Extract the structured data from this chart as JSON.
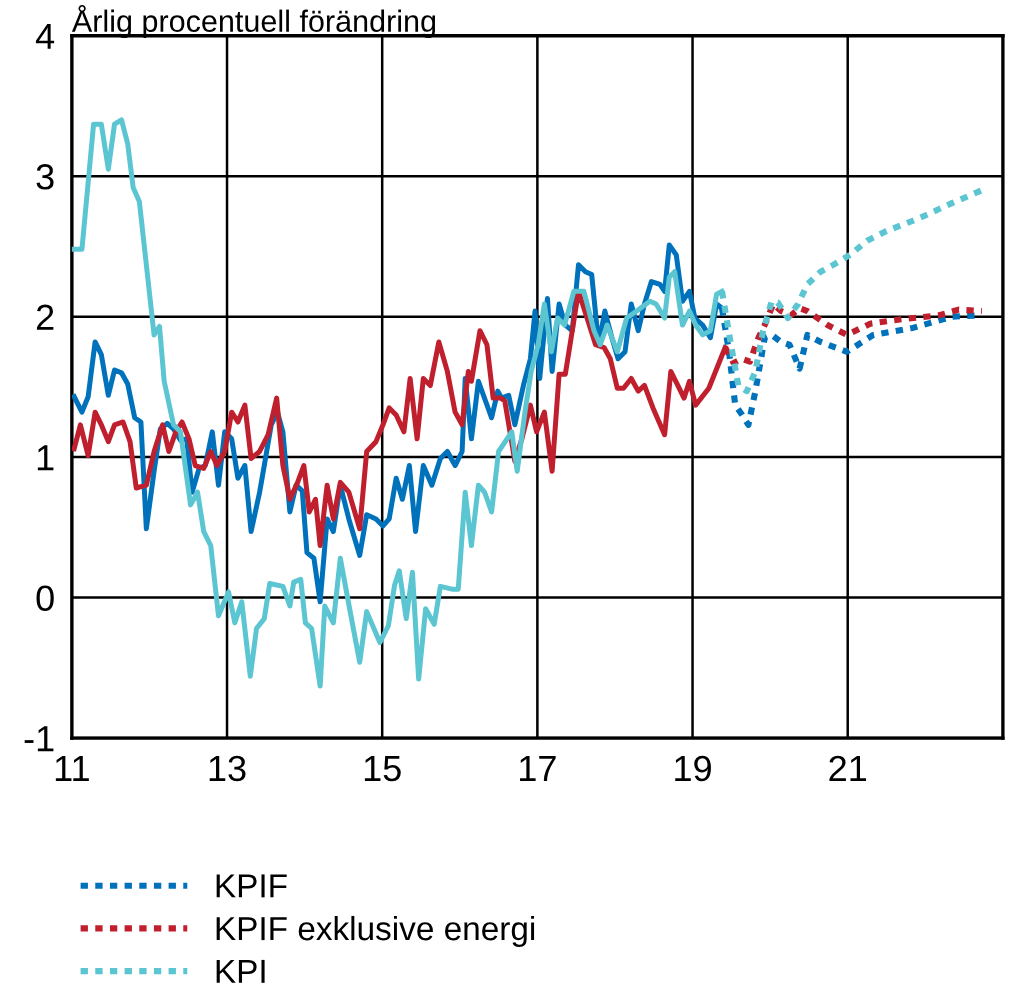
{
  "chart_data": {
    "type": "line",
    "title": "Årlig procentuell förändring",
    "xlim": [
      11,
      23
    ],
    "xticks": [
      11,
      13,
      15,
      17,
      19,
      21
    ],
    "ylim": [
      -1,
      4
    ],
    "yticks": [
      -1,
      0,
      1,
      2,
      3,
      4
    ],
    "grid": true,
    "legend": "bottom",
    "marker": "none",
    "series": [
      {
        "color": "#0071bb",
        "line_style": "solid",
        "x": [
          11.03,
          11.13,
          11.21,
          11.3,
          11.38,
          11.47,
          11.55,
          11.64,
          11.72,
          11.81,
          11.89,
          11.96,
          12.06,
          12.14,
          12.23,
          12.31,
          12.4,
          12.48,
          12.55,
          12.64,
          12.72,
          12.81,
          12.89,
          12.97,
          13.06,
          13.14,
          13.23,
          13.31,
          13.42,
          13.48,
          13.57,
          13.65,
          13.72,
          13.81,
          13.89,
          13.97,
          14.03,
          14.12,
          14.2,
          14.29,
          14.37,
          14.46,
          14.57,
          14.71,
          14.8,
          14.92,
          15.01,
          15.09,
          15.18,
          15.26,
          15.35,
          15.43,
          15.53,
          15.64,
          15.75,
          15.84,
          15.94,
          16.03,
          16.07,
          16.15,
          16.24,
          16.41,
          16.49,
          16.54,
          16.63,
          16.71,
          16.82,
          16.91,
          16.97,
          17.03,
          17.13,
          17.19,
          17.28,
          17.36,
          17.45,
          17.53,
          17.62,
          17.7,
          17.79,
          17.87,
          17.96,
          18.04,
          18.13,
          18.21,
          18.3,
          18.38,
          18.47,
          18.58,
          18.64,
          18.7,
          18.79,
          18.87,
          18.96,
          19.03,
          19.13,
          19.23,
          19.31,
          19.38
        ],
        "values": [
          1.43,
          1.32,
          1.43,
          1.82,
          1.73,
          1.44,
          1.62,
          1.6,
          1.52,
          1.28,
          1.25,
          0.49,
          0.9,
          1.2,
          1.24,
          1.2,
          1.12,
          1.13,
          0.75,
          0.92,
          0.94,
          1.18,
          0.8,
          1.18,
          1.13,
          0.85,
          0.94,
          0.47,
          0.75,
          0.94,
          1.23,
          1.32,
          1.18,
          0.61,
          0.8,
          0.76,
          0.32,
          0.28,
          -0.03,
          0.56,
          0.47,
          0.8,
          0.56,
          0.3,
          0.59,
          0.56,
          0.51,
          0.56,
          0.85,
          0.7,
          0.94,
          0.47,
          0.94,
          0.8,
          0.99,
          1.04,
          0.94,
          1.04,
          1.56,
          1.13,
          1.54,
          1.28,
          1.47,
          1.42,
          1.44,
          1.23,
          1.51,
          1.7,
          2.04,
          1.56,
          2.13,
          1.61,
          2.09,
          1.94,
          1.9,
          2.37,
          2.32,
          2.3,
          1.8,
          2.04,
          1.85,
          1.7,
          1.75,
          2.09,
          1.9,
          2.09,
          2.25,
          2.23,
          2.18,
          2.51,
          2.44,
          2.11,
          2.18,
          1.99,
          1.94,
          1.85,
          2.09,
          2.06
        ]
      },
      {
        "color": "#c0202e",
        "line_style": "solid",
        "x": [
          11.03,
          11.11,
          11.21,
          11.3,
          11.38,
          11.47,
          11.55,
          11.66,
          11.75,
          11.83,
          11.96,
          12.06,
          12.17,
          12.25,
          12.34,
          12.42,
          12.51,
          12.59,
          12.7,
          12.79,
          12.87,
          12.97,
          13.06,
          13.14,
          13.23,
          13.31,
          13.42,
          13.53,
          13.64,
          13.72,
          13.81,
          13.91,
          13.99,
          14.06,
          14.14,
          14.2,
          14.29,
          14.37,
          14.46,
          14.57,
          14.71,
          14.8,
          14.92,
          15.01,
          15.09,
          15.18,
          15.28,
          15.36,
          15.45,
          15.53,
          15.62,
          15.73,
          15.84,
          15.94,
          16.03,
          16.11,
          16.15,
          16.26,
          16.35,
          16.43,
          16.53,
          16.58,
          16.71,
          16.8,
          16.91,
          16.99,
          17.09,
          17.19,
          17.28,
          17.36,
          17.45,
          17.53,
          17.64,
          17.75,
          17.86,
          17.94,
          18.03,
          18.11,
          18.21,
          18.3,
          18.38,
          18.49,
          18.64,
          18.72,
          18.81,
          18.89,
          18.96,
          19.04,
          19.21,
          19.42
        ],
        "values": [
          1.06,
          1.23,
          1.01,
          1.32,
          1.23,
          1.11,
          1.23,
          1.25,
          1.11,
          0.78,
          0.8,
          1.04,
          1.23,
          1.04,
          1.18,
          1.25,
          1.13,
          0.94,
          0.92,
          1.04,
          0.94,
          1.04,
          1.32,
          1.25,
          1.37,
          0.99,
          1.04,
          1.16,
          1.42,
          0.94,
          0.7,
          0.82,
          0.94,
          0.61,
          0.7,
          0.37,
          0.8,
          0.56,
          0.82,
          0.75,
          0.49,
          1.04,
          1.11,
          1.23,
          1.35,
          1.3,
          1.18,
          1.56,
          1.13,
          1.56,
          1.51,
          1.82,
          1.61,
          1.32,
          1.23,
          1.61,
          1.54,
          1.9,
          1.8,
          1.42,
          1.42,
          1.4,
          0.97,
          1.13,
          1.37,
          1.18,
          1.32,
          0.9,
          1.59,
          1.59,
          1.9,
          2.18,
          1.99,
          1.8,
          1.78,
          1.7,
          1.49,
          1.49,
          1.56,
          1.47,
          1.51,
          1.35,
          1.16,
          1.61,
          1.51,
          1.42,
          1.54,
          1.37,
          1.49,
          1.78
        ]
      },
      {
        "color": "#5bc5d2",
        "line_style": "solid",
        "x": [
          11.0,
          11.13,
          11.28,
          11.38,
          11.47,
          11.55,
          11.64,
          11.72,
          11.79,
          11.87,
          11.96,
          12.06,
          12.13,
          12.19,
          12.31,
          12.4,
          12.53,
          12.62,
          12.7,
          12.79,
          12.89,
          13.02,
          13.1,
          13.19,
          13.3,
          13.38,
          13.48,
          13.55,
          13.72,
          13.81,
          13.86,
          13.95,
          14.01,
          14.09,
          14.2,
          14.26,
          14.37,
          14.46,
          14.58,
          14.71,
          14.8,
          14.97,
          15.08,
          15.16,
          15.22,
          15.31,
          15.39,
          15.47,
          15.56,
          15.67,
          15.75,
          15.9,
          15.98,
          16.07,
          16.15,
          16.24,
          16.32,
          16.41,
          16.5,
          16.67,
          16.74,
          16.84,
          16.92,
          17.01,
          17.09,
          17.18,
          17.26,
          17.35,
          17.47,
          17.6,
          17.73,
          17.81,
          17.9,
          18.03,
          18.15,
          18.28,
          18.45,
          18.53,
          18.64,
          18.7,
          18.77,
          18.87,
          18.96,
          19.04,
          19.13,
          19.23,
          19.31,
          19.38
        ],
        "values": [
          2.48,
          2.48,
          3.37,
          3.37,
          3.05,
          3.37,
          3.4,
          3.23,
          2.92,
          2.82,
          2.37,
          1.87,
          1.93,
          1.54,
          1.23,
          1.18,
          0.66,
          0.75,
          0.47,
          0.37,
          -0.13,
          0.04,
          -0.18,
          -0.03,
          -0.56,
          -0.22,
          -0.15,
          0.1,
          0.08,
          -0.06,
          0.11,
          0.13,
          -0.18,
          -0.22,
          -0.63,
          -0.06,
          -0.18,
          0.28,
          -0.08,
          -0.46,
          -0.1,
          -0.32,
          -0.2,
          0.09,
          0.19,
          -0.15,
          0.18,
          -0.58,
          -0.08,
          -0.19,
          0.08,
          0.06,
          0.06,
          0.75,
          0.37,
          0.8,
          0.75,
          0.61,
          1.04,
          1.18,
          0.9,
          1.32,
          1.61,
          1.8,
          2.09,
          1.75,
          1.99,
          1.94,
          2.18,
          2.18,
          1.9,
          1.8,
          1.94,
          1.75,
          1.99,
          2.04,
          2.11,
          2.09,
          1.99,
          2.28,
          2.32,
          1.94,
          2.04,
          1.94,
          1.87,
          1.9,
          2.16,
          2.18
        ]
      },
      {
        "name": "KPIF",
        "color": "#0071bb",
        "line_style": "dotted",
        "x": [
          19.38,
          19.47,
          19.55,
          19.64,
          19.72,
          19.81,
          19.93,
          20.02,
          20.14,
          20.25,
          20.38,
          20.48,
          20.65,
          20.99,
          21.33,
          21.84,
          22.35,
          22.73
        ],
        "values": [
          2.06,
          1.75,
          1.37,
          1.3,
          1.23,
          1.47,
          1.85,
          1.87,
          1.82,
          1.8,
          1.63,
          1.87,
          1.82,
          1.75,
          1.87,
          1.92,
          2.0,
          2.01
        ]
      },
      {
        "name": "KPIF exklusive energi",
        "color": "#c0202e",
        "line_style": "dotted",
        "x": [
          19.42,
          19.53,
          19.64,
          19.74,
          19.85,
          19.93,
          20.04,
          20.14,
          20.27,
          20.38,
          20.48,
          20.74,
          20.99,
          21.29,
          21.67,
          22.18,
          22.43,
          22.73
        ],
        "values": [
          1.78,
          1.67,
          1.7,
          1.68,
          1.85,
          1.94,
          2.09,
          2.04,
          2.01,
          2.06,
          2.04,
          1.94,
          1.87,
          1.95,
          1.98,
          2.01,
          2.05,
          2.04
        ]
      },
      {
        "name": "KPI",
        "color": "#5bc5d2",
        "line_style": "dotted",
        "x": [
          19.38,
          19.48,
          19.59,
          19.7,
          19.81,
          19.91,
          20.02,
          20.1,
          20.23,
          20.36,
          20.48,
          20.65,
          20.82,
          21.03,
          21.25,
          21.5,
          21.92,
          22.35,
          22.73
        ],
        "values": [
          2.18,
          1.85,
          1.51,
          1.47,
          1.61,
          1.9,
          2.11,
          2.1,
          1.99,
          2.09,
          2.23,
          2.32,
          2.37,
          2.44,
          2.54,
          2.61,
          2.7,
          2.81,
          2.9
        ]
      }
    ]
  }
}
